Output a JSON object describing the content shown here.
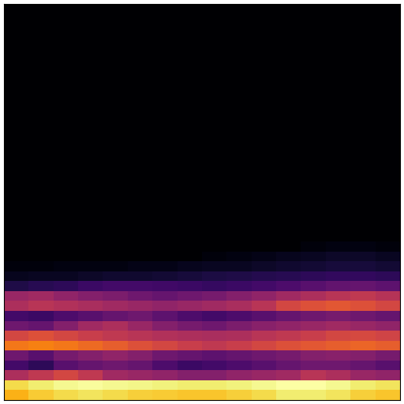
{
  "chart_data": {
    "type": "heatmap",
    "tick_labels": false,
    "color": "inferno",
    "cells": [
      [
        0,
        0,
        0,
        0,
        0,
        0,
        0,
        0,
        0,
        0,
        0,
        0,
        0,
        0,
        0,
        0
      ],
      [
        0,
        0,
        0,
        0,
        0,
        0,
        0,
        0,
        0,
        0,
        0,
        0,
        0,
        0,
        0,
        0
      ],
      [
        0,
        0,
        0,
        0,
        0,
        0,
        0,
        0,
        0,
        0,
        0,
        0,
        0,
        0,
        0,
        0
      ],
      [
        0,
        0,
        0,
        0,
        0,
        0,
        0,
        0,
        0,
        0,
        0,
        0,
        0,
        0,
        0,
        0
      ],
      [
        0,
        0,
        0,
        0,
        0,
        0,
        0,
        0,
        0,
        0,
        0,
        0,
        0,
        0,
        0,
        0
      ],
      [
        0,
        0,
        0,
        0,
        0,
        0,
        0,
        0,
        0,
        0,
        0,
        0,
        0,
        0,
        0,
        0
      ],
      [
        0,
        0,
        0,
        0,
        0,
        0,
        0,
        0,
        0,
        0,
        0,
        0,
        0,
        0,
        0,
        0
      ],
      [
        0,
        0,
        0,
        0,
        0,
        0,
        0,
        0,
        0,
        0,
        0,
        0,
        0,
        0,
        0,
        0
      ],
      [
        0,
        0,
        0,
        0,
        0,
        0,
        0,
        0,
        0,
        0,
        0,
        0,
        0,
        0,
        0,
        0
      ],
      [
        0,
        0,
        0,
        0,
        0,
        0,
        0,
        0,
        0,
        0,
        0,
        0,
        0,
        0,
        0,
        0
      ],
      [
        0,
        0,
        0,
        0,
        0,
        0,
        0,
        0,
        0,
        0,
        0,
        0,
        0,
        0,
        0,
        0
      ],
      [
        0,
        0,
        0,
        0,
        0,
        0,
        0,
        0,
        0,
        0,
        0,
        0,
        0,
        0,
        0,
        0
      ],
      [
        0,
        0,
        0,
        0,
        0,
        0,
        0,
        0,
        0,
        0,
        0,
        0,
        0,
        0,
        0,
        0
      ],
      [
        0,
        0,
        0,
        0,
        0,
        0,
        0,
        0,
        0,
        0,
        0,
        0,
        0,
        0,
        0,
        0
      ],
      [
        0,
        0,
        0,
        0,
        0,
        0,
        0,
        0,
        0,
        0,
        0,
        0,
        0,
        0,
        0,
        0
      ],
      [
        0,
        0,
        0,
        0,
        0,
        0,
        0,
        0,
        0,
        0,
        0,
        0,
        0,
        0,
        0,
        0
      ],
      [
        0,
        0,
        0,
        0,
        0,
        0,
        0,
        0,
        0,
        0,
        0,
        0,
        0,
        0,
        0,
        0
      ],
      [
        0,
        0,
        0,
        0,
        0,
        0,
        0,
        0,
        0,
        0,
        0,
        0,
        0,
        0,
        0,
        0
      ],
      [
        0,
        0,
        0,
        0,
        0,
        0,
        0,
        0,
        0,
        0,
        0,
        0,
        0,
        0,
        0,
        0
      ],
      [
        0,
        0,
        0,
        0,
        0,
        0,
        0,
        0,
        0,
        0,
        0,
        0,
        0,
        0,
        0,
        0
      ],
      [
        0,
        0,
        0,
        0,
        0,
        0,
        0,
        0,
        0,
        0,
        0,
        0,
        0,
        0,
        0,
        0
      ],
      [
        0,
        0,
        0,
        0,
        0,
        0,
        0,
        0,
        0,
        0,
        0,
        0,
        0,
        0,
        0,
        0
      ],
      [
        0,
        0,
        0,
        0,
        0,
        0,
        0,
        0,
        0,
        0,
        0,
        0,
        0,
        0,
        0,
        0
      ],
      [
        0,
        0,
        0,
        0,
        0,
        0,
        0,
        0,
        0,
        0,
        0,
        0,
        0,
        0,
        0,
        0
      ],
      [
        0,
        0,
        0,
        0,
        0,
        0,
        0,
        0,
        0,
        0,
        0,
        0,
        2,
        3,
        3,
        2
      ],
      [
        0,
        0,
        0,
        0,
        0,
        0,
        0,
        0,
        2,
        3,
        4,
        5,
        6,
        7,
        7,
        6
      ],
      [
        2,
        2,
        3,
        3,
        3,
        4,
        4,
        5,
        6,
        6,
        7,
        8,
        9,
        10,
        10,
        9
      ],
      [
        5,
        6,
        6,
        7,
        8,
        8,
        9,
        10,
        11,
        12,
        13,
        14,
        15,
        16,
        16,
        15
      ],
      [
        12,
        14,
        15,
        18,
        20,
        20,
        19,
        18,
        17,
        18,
        20,
        22,
        25,
        27,
        28,
        26
      ],
      [
        40,
        42,
        38,
        35,
        33,
        30,
        28,
        30,
        32,
        35,
        38,
        42,
        45,
        48,
        50,
        47
      ],
      [
        45,
        48,
        46,
        44,
        42,
        40,
        38,
        40,
        42,
        44,
        48,
        55,
        58,
        60,
        58,
        55
      ],
      [
        20,
        18,
        22,
        25,
        28,
        30,
        26,
        22,
        20,
        22,
        25,
        28,
        30,
        32,
        30,
        28
      ],
      [
        30,
        28,
        35,
        42,
        45,
        40,
        35,
        32,
        30,
        33,
        36,
        38,
        40,
        42,
        40,
        38
      ],
      [
        55,
        58,
        55,
        52,
        50,
        48,
        46,
        45,
        44,
        45,
        48,
        50,
        52,
        55,
        56,
        54
      ],
      [
        68,
        70,
        68,
        65,
        62,
        58,
        55,
        52,
        50,
        52,
        55,
        58,
        60,
        62,
        64,
        62
      ],
      [
        30,
        25,
        32,
        35,
        38,
        35,
        30,
        28,
        26,
        28,
        30,
        32,
        35,
        36,
        35,
        32
      ],
      [
        20,
        15,
        25,
        28,
        30,
        28,
        22,
        18,
        20,
        22,
        25,
        28,
        30,
        30,
        28,
        25
      ],
      [
        45,
        50,
        55,
        50,
        42,
        40,
        38,
        35,
        35,
        38,
        40,
        42,
        48,
        45,
        40,
        38
      ],
      [
        88,
        92,
        95,
        96,
        95,
        94,
        93,
        92,
        92,
        93,
        95,
        97,
        97,
        95,
        92,
        90
      ],
      [
        80,
        85,
        88,
        90,
        88,
        86,
        85,
        84,
        84,
        86,
        88,
        92,
        92,
        90,
        86,
        84
      ]
    ]
  }
}
